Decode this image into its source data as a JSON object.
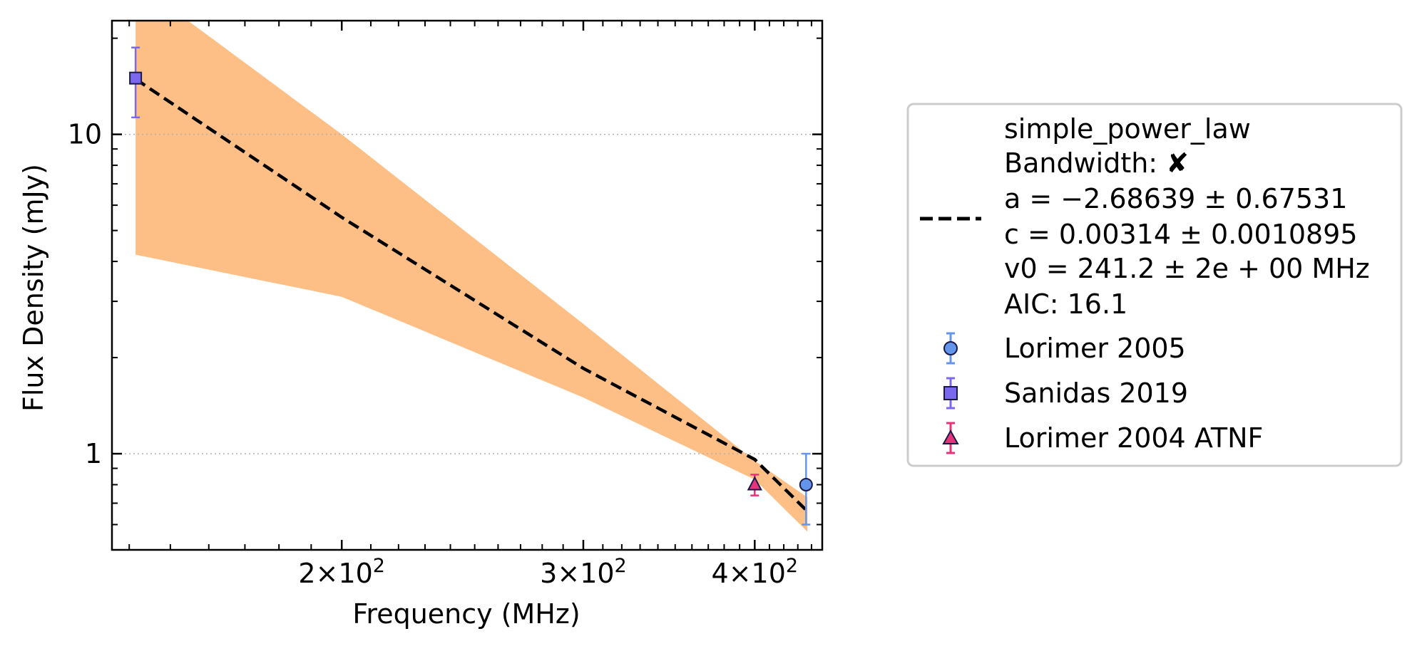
{
  "chart_data": {
    "type": "scatter",
    "title": "",
    "xlabel": "Frequency (MHz)",
    "ylabel": "Flux Density (mJy)",
    "xscale": "log",
    "yscale": "log",
    "xlim": [
      136,
      448
    ],
    "ylim": [
      0.5,
      22.7
    ],
    "grid": "horizontal dotted at major y ticks",
    "legend_position": "right, outside plot",
    "x_ticks": [
      {
        "value": 200,
        "base": "2",
        "exp": "2"
      },
      {
        "value": 300,
        "base": "3",
        "exp": "2"
      },
      {
        "value": 400,
        "base": "4",
        "exp": "2"
      }
    ],
    "y_ticks": [
      {
        "value": 1,
        "label": "1"
      },
      {
        "value": 10,
        "label": "10"
      }
    ],
    "fit": {
      "model": "simple_power_law",
      "a": -2.68639,
      "c": 0.00314,
      "v0": 241.2,
      "line_color": "#000000",
      "band_color": "#fdbf86",
      "line_points": [
        [
          141.5,
          14.9
        ],
        [
          200,
          5.5
        ],
        [
          300,
          1.85
        ],
        [
          400,
          0.96
        ],
        [
          437,
          0.66
        ]
      ],
      "band_upper": [
        [
          141.5,
          30
        ],
        [
          200,
          10.0
        ],
        [
          300,
          2.55
        ],
        [
          400,
          0.95
        ],
        [
          437,
          0.73
        ]
      ],
      "band_lower": [
        [
          141.5,
          4.2
        ],
        [
          200,
          3.1
        ],
        [
          300,
          1.5
        ],
        [
          400,
          0.83
        ],
        [
          437,
          0.57
        ]
      ]
    },
    "series": [
      {
        "name": "Lorimer 2005",
        "marker": "circle",
        "color": "#6495ed",
        "edge": "#1a1a4a",
        "errcolor": "#6495ed",
        "points": [
          {
            "x": 436,
            "y": 0.8,
            "yerr_low": 0.2,
            "yerr_high": 0.2
          }
        ]
      },
      {
        "name": "Sanidas 2019",
        "marker": "square",
        "color": "#7b68ee",
        "edge": "#1a1a4a",
        "errcolor": "#7b68ee",
        "points": [
          {
            "x": 141.5,
            "y": 15.0,
            "yerr_low": 3.7,
            "yerr_high": 3.7
          }
        ]
      },
      {
        "name": "Lorimer 2004 ATNF",
        "marker": "triangle",
        "color": "#e6337a",
        "edge": "#1a1a4a",
        "errcolor": "#e6337a",
        "points": [
          {
            "x": 400,
            "y": 0.8,
            "yerr_low": 0.06,
            "yerr_high": 0.06
          }
        ]
      }
    ]
  },
  "legend": {
    "fit_lines": [
      "simple_power_law",
      "Bandwidth: ✘",
      "a = −2.68639 ± 0.67531",
      "c = 0.00314 ± 0.0010895",
      "v0 = 241.2 ± 2e + 00 MHz",
      "AIC: 16.1"
    ],
    "entries": [
      "Lorimer 2005",
      "Sanidas 2019",
      "Lorimer 2004 ATNF"
    ]
  }
}
